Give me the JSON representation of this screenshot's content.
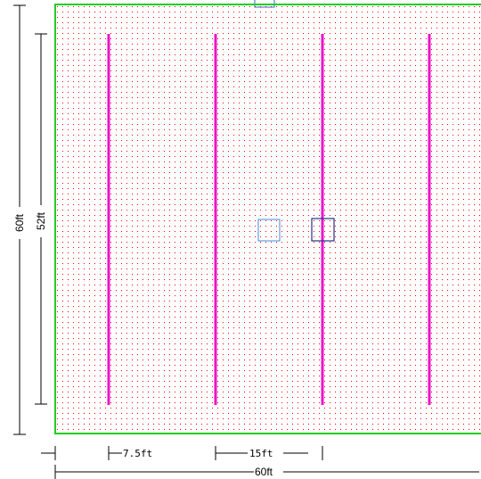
{
  "plan": {
    "field_border_color": "#22cc22",
    "grid_dot_color": "#ff0000",
    "line_color": "#ee11cc",
    "marker_color": "#3366cc",
    "line_count": 4
  },
  "dimensions": {
    "overall_height": "60ft",
    "line_length": "52ft",
    "edge_offset": "7.5ft",
    "line_spacing": "15ft",
    "overall_width": "60ft"
  }
}
